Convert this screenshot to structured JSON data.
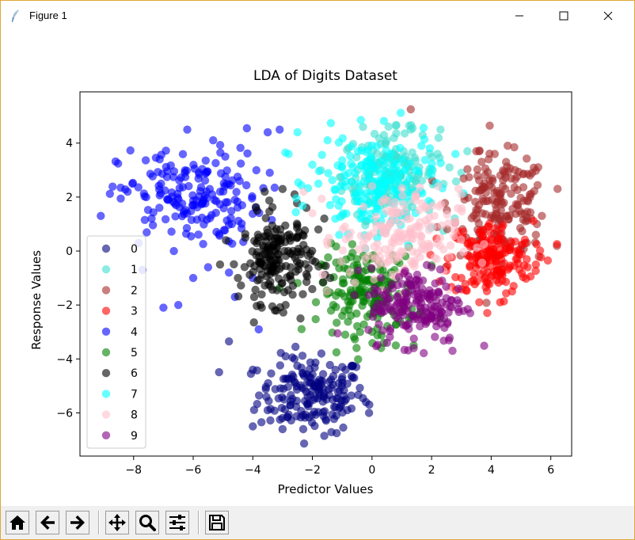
{
  "window": {
    "title": "Figure 1"
  },
  "toolbar": {
    "buttons": [
      {
        "name": "home-button",
        "icon": "home-icon"
      },
      {
        "name": "back-button",
        "icon": "arrow-left-icon"
      },
      {
        "name": "forward-button",
        "icon": "arrow-right-icon"
      },
      {
        "name": "pan-button",
        "icon": "move-icon"
      },
      {
        "name": "zoom-button",
        "icon": "magnifier-icon"
      },
      {
        "name": "subplots-button",
        "icon": "sliders-icon"
      },
      {
        "name": "save-button",
        "icon": "floppy-disk-icon"
      }
    ]
  },
  "chart_data": {
    "type": "scatter",
    "title": "LDA of Digits Dataset",
    "xlabel": "Predictor Values",
    "ylabel": "Response Values",
    "xlim": [
      -9.8,
      6.7
    ],
    "ylim": [
      -7.6,
      5.9
    ],
    "xticks": [
      -8,
      -6,
      -4,
      -2,
      0,
      2,
      4,
      6
    ],
    "yticks": [
      -6,
      -4,
      -2,
      0,
      2,
      4
    ],
    "grid": false,
    "legend_position": "lower-left",
    "marker_alpha": 0.6,
    "series": [
      {
        "name": "0",
        "color": "#000080",
        "center": [
          -2.0,
          -5.3
        ],
        "spread": [
          0.9,
          0.7
        ],
        "n": 178,
        "points": [
          [
            -1.6,
            -6.85
          ],
          [
            -3.0,
            -6.6
          ],
          [
            -3.5,
            -5.9
          ],
          [
            -4.0,
            -4.4
          ],
          [
            -2.6,
            -4.0
          ],
          [
            -2.9,
            -3.9
          ],
          [
            -1.7,
            -3.8
          ],
          [
            -1.0,
            -4.3
          ],
          [
            -0.6,
            -4.7
          ],
          [
            -0.2,
            -5.6
          ],
          [
            -0.1,
            -6.0
          ],
          [
            -1.2,
            -6.1
          ],
          [
            -4.0,
            -6.5
          ],
          [
            -4.8,
            -3.35
          ]
        ]
      },
      {
        "name": "1",
        "color": "#40E0D0",
        "center": [
          0.6,
          2.8
        ],
        "spread": [
          0.8,
          0.8
        ],
        "n": 182,
        "points": [
          [
            0.8,
            4.65
          ],
          [
            1.3,
            4.5
          ],
          [
            2.3,
            4.5
          ],
          [
            1.7,
            4.3
          ],
          [
            2.2,
            3.6
          ],
          [
            3.2,
            3.7
          ],
          [
            2.6,
            3.1
          ],
          [
            3.0,
            2.9
          ],
          [
            -0.3,
            4.6
          ],
          [
            0.4,
            4.3
          ]
        ]
      },
      {
        "name": "2",
        "color": "#A52A2A",
        "center": [
          4.3,
          1.7
        ],
        "spread": [
          0.8,
          0.9
        ],
        "n": 177,
        "points": [
          [
            1.3,
            5.25
          ],
          [
            3.5,
            3.7
          ],
          [
            3.6,
            3.7
          ],
          [
            4.5,
            3.3
          ],
          [
            4.8,
            3.0
          ],
          [
            5.3,
            2.8
          ],
          [
            5.5,
            0.6
          ],
          [
            5.6,
            -0.2
          ],
          [
            5.7,
            1.3
          ],
          [
            5.3,
            2.0
          ]
        ]
      },
      {
        "name": "3",
        "color": "#FF0000",
        "center": [
          4.0,
          -0.3
        ],
        "spread": [
          0.7,
          0.7
        ],
        "n": 183,
        "points": [
          [
            5.9,
            -0.35
          ],
          [
            5.5,
            -0.5
          ],
          [
            4.3,
            -1.9
          ],
          [
            3.6,
            -1.9
          ],
          [
            3.0,
            -1.0
          ],
          [
            4.7,
            -1.5
          ]
        ]
      },
      {
        "name": "4",
        "color": "#0000FF",
        "center": [
          -6.1,
          2.0
        ],
        "spread": [
          1.2,
          0.9
        ],
        "n": 181,
        "points": [
          [
            -9.1,
            1.3
          ],
          [
            -8.2,
            2.2
          ],
          [
            -7.7,
            -0.7
          ],
          [
            -6.2,
            4.5
          ],
          [
            -4.2,
            4.55
          ],
          [
            -3.5,
            4.4
          ],
          [
            -3.1,
            4.5
          ],
          [
            -5.5,
            -0.6
          ],
          [
            -6.0,
            -1.0
          ],
          [
            -6.5,
            -2.0
          ],
          [
            -7.0,
            -2.1
          ],
          [
            -4.0,
            -1.0
          ],
          [
            -4.8,
            -0.8
          ],
          [
            -3.8,
            -2.9
          ],
          [
            -4.6,
            -1.7
          ]
        ]
      },
      {
        "name": "5",
        "color": "#008000",
        "center": [
          -0.1,
          -1.5
        ],
        "spread": [
          0.8,
          0.8
        ],
        "n": 182,
        "points": [
          [
            -1.5,
            -1.6
          ],
          [
            -1.3,
            -2.0
          ],
          [
            -1.0,
            -2.4
          ],
          [
            -0.9,
            -3.1
          ],
          [
            -0.4,
            -3.0
          ],
          [
            0.4,
            -3.4
          ],
          [
            0.8,
            -3.5
          ],
          [
            1.4,
            -3.5
          ],
          [
            2.3,
            -2.5
          ]
        ]
      },
      {
        "name": "6",
        "color": "#000000",
        "center": [
          -3.2,
          -0.3
        ],
        "spread": [
          0.6,
          0.8
        ],
        "n": 181,
        "points": [
          [
            -2.6,
            2.1
          ],
          [
            -3.0,
            2.3
          ],
          [
            -3.6,
            2.2
          ],
          [
            -2.2,
            1.6
          ],
          [
            -1.6,
            1.2
          ],
          [
            -1.8,
            0.8
          ],
          [
            -4.9,
            0.4
          ],
          [
            -5.1,
            -0.5
          ],
          [
            -4.5,
            -1.0
          ],
          [
            -2.4,
            -2.5
          ],
          [
            -2.9,
            -2.0
          ],
          [
            -3.7,
            -2.1
          ],
          [
            -1.4,
            -1.0
          ],
          [
            -1.9,
            -0.4
          ]
        ]
      },
      {
        "name": "7",
        "color": "#00FFFF",
        "center": [
          0.1,
          2.5
        ],
        "spread": [
          1.0,
          0.9
        ],
        "n": 179,
        "points": [
          [
            -2.5,
            4.4
          ],
          [
            -2.8,
            3.6
          ],
          [
            -2.0,
            3.2
          ],
          [
            -1.8,
            2.5
          ],
          [
            -1.1,
            0.6
          ],
          [
            2.8,
            3.6
          ]
        ]
      },
      {
        "name": "8",
        "color": "#FFC0CB",
        "center": [
          0.9,
          0.5
        ],
        "spread": [
          1.0,
          0.9
        ],
        "n": 174,
        "points": [
          [
            -2.3,
            2.2
          ],
          [
            -2.0,
            1.4
          ],
          [
            -1.5,
            -1.5
          ],
          [
            3.0,
            2.1
          ],
          [
            2.8,
            1.1
          ],
          [
            2.6,
            -0.2
          ]
        ]
      },
      {
        "name": "9",
        "color": "#800080",
        "center": [
          1.5,
          -2.0
        ],
        "spread": [
          0.8,
          0.7
        ],
        "n": 180,
        "points": [
          [
            0.5,
            -3.4
          ],
          [
            1.4,
            -3.6
          ],
          [
            2.7,
            -3.7
          ],
          [
            0.3,
            -1.0
          ],
          [
            2.9,
            -1.4
          ],
          [
            2.0,
            -0.6
          ]
        ]
      }
    ]
  }
}
